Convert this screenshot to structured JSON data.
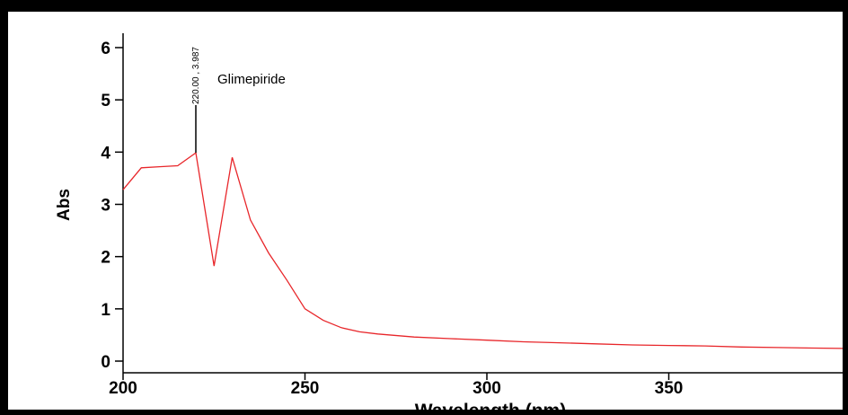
{
  "chart_data": {
    "type": "line",
    "title": "",
    "xlabel": "Wavelength (nm)",
    "ylabel": "Abs",
    "xlim": [
      200,
      400
    ],
    "ylim": [
      -0.25,
      6.35
    ],
    "xticks": [
      200,
      250,
      300,
      350
    ],
    "yticks": [
      0,
      1,
      2,
      3,
      4,
      5,
      6
    ],
    "grid": false,
    "series": [
      {
        "name": "Glimepiride",
        "color": "#e8262a",
        "x": [
          200,
          205,
          210,
          215,
          220,
          225,
          230,
          235,
          240,
          245,
          250,
          255,
          260,
          265,
          270,
          280,
          290,
          300,
          310,
          320,
          330,
          340,
          350,
          360,
          370,
          380,
          390,
          400
        ],
        "y": [
          3.28,
          3.7,
          3.72,
          3.74,
          3.987,
          1.82,
          3.9,
          2.7,
          2.07,
          1.55,
          1.0,
          0.78,
          0.64,
          0.56,
          0.52,
          0.46,
          0.43,
          0.4,
          0.37,
          0.35,
          0.33,
          0.31,
          0.3,
          0.29,
          0.27,
          0.26,
          0.25,
          0.24
        ]
      }
    ],
    "annotations": [
      {
        "x": 220,
        "y": 3.987,
        "label": "220.00 , 3.987"
      }
    ],
    "legend_text": "Glimepiride"
  }
}
